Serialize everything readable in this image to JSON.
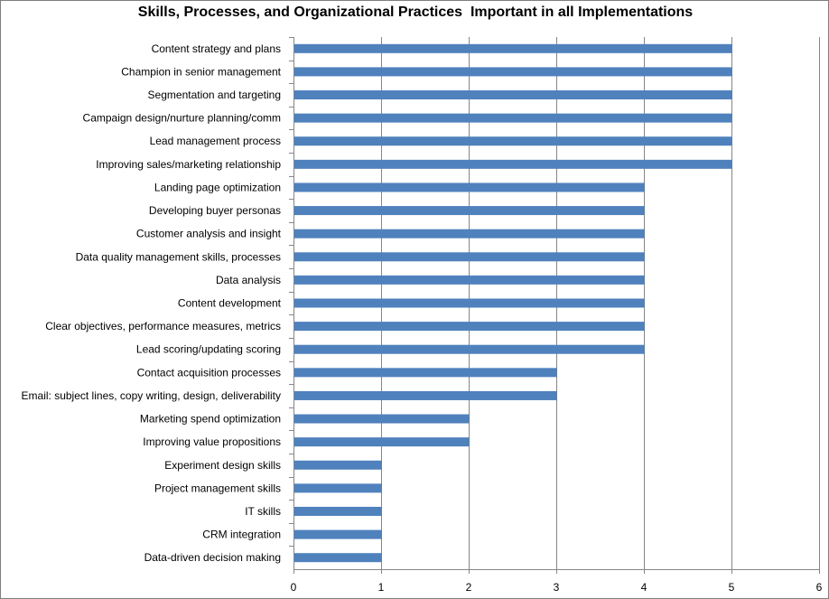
{
  "chart_data": {
    "type": "bar",
    "orientation": "horizontal",
    "title": "Skills, Processes, and Organizational Practices  Important in all Implementations",
    "xlabel": "",
    "ylabel": "",
    "xlim": [
      0,
      6
    ],
    "xticks": [
      0,
      1,
      2,
      3,
      4,
      5,
      6
    ],
    "grid": "vertical",
    "legend": "none",
    "bar_color": "#4f81bd",
    "categories": [
      "Content strategy and plans",
      "Champion in senior management",
      "Segmentation and targeting",
      "Campaign design/nurture planning/comm",
      "Lead management  process",
      "Improving sales/marketing relationship",
      "Landing page  optimization",
      "Developing buyer personas",
      "Customer analysis and insight",
      "Data quality management  skills, processes",
      "Data analysis",
      "Content development",
      "Clear objectives, performance measures, metrics",
      "Lead scoring/updating scoring",
      "Contact acquisition processes",
      "Email:  subject lines, copy writing, design, deliverability",
      "Marketing spend optimization",
      "Improving value propositions",
      "Experiment design skills",
      "Project management  skills",
      "IT skills",
      "CRM integration",
      "Data-driven decision making"
    ],
    "values": [
      5,
      5,
      5,
      5,
      5,
      5,
      4,
      4,
      4,
      4,
      4,
      4,
      4,
      4,
      3,
      3,
      2,
      2,
      1,
      1,
      1,
      1,
      1
    ]
  }
}
